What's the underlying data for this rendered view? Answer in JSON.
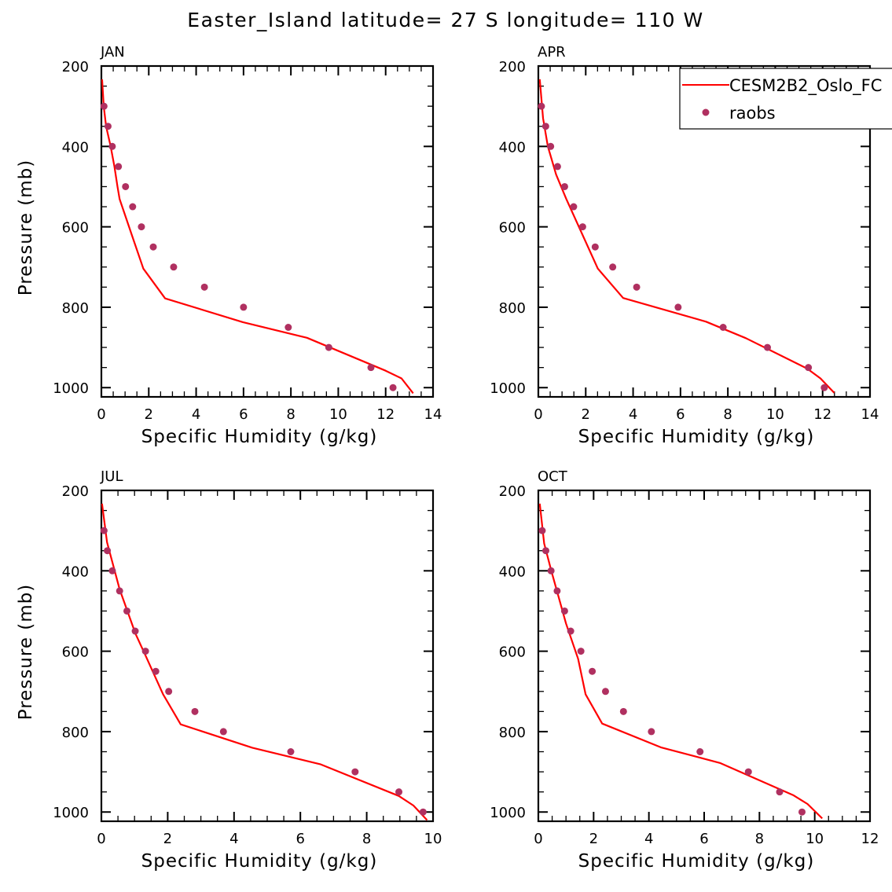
{
  "title": "Easter_Island  latitude= 27 S longitude= 110 W",
  "legend": {
    "model_label": "CESM2B2_Oslo_FC",
    "obs_label": "raobs",
    "placement": "top-right of APR panel"
  },
  "colors": {
    "model": "#ff0000",
    "obs": "#b03060",
    "axes": "#000000"
  },
  "chart_data": [
    {
      "type": "line",
      "title": "JAN",
      "xlabel": "Specific Humidity (g/kg)",
      "ylabel": "Pressure (mb)",
      "xlim": [
        0,
        14
      ],
      "ylim": [
        200,
        1023
      ],
      "y_inverted": true,
      "xticks": [
        0,
        2,
        4,
        6,
        8,
        10,
        12,
        14
      ],
      "yticks": [
        200,
        400,
        600,
        800,
        1000
      ],
      "series": [
        {
          "name": "CESM2B2_Oslo_FC",
          "style": "line",
          "x": [
            0.03,
            0.1,
            0.2,
            0.39,
            0.55,
            0.68,
            0.77,
            1.3,
            1.77,
            2.69,
            5.97,
            8.68,
            12.0,
            12.67,
            13.16
          ],
          "y": [
            233,
            300,
            350,
            400,
            450,
            500,
            531,
            623,
            704,
            778,
            837,
            876,
            958,
            977,
            1014
          ]
        },
        {
          "name": "raobs",
          "style": "markers",
          "x": [
            0.11,
            0.28,
            0.46,
            0.72,
            1.02,
            1.32,
            1.69,
            2.19,
            3.05,
            4.35,
            6.0,
            7.89,
            9.6,
            11.38,
            12.31
          ],
          "y": [
            300,
            350,
            400,
            450,
            500,
            550,
            600,
            650,
            700,
            750,
            800,
            850,
            900,
            950,
            1000
          ]
        }
      ]
    },
    {
      "type": "line",
      "title": "APR",
      "xlabel": "Specific Humidity (g/kg)",
      "ylabel": "",
      "xlim": [
        0,
        14
      ],
      "ylim": [
        200,
        1023
      ],
      "y_inverted": true,
      "xticks": [
        0,
        2,
        4,
        6,
        8,
        10,
        12,
        14
      ],
      "yticks": [
        200,
        400,
        600,
        800,
        1000
      ],
      "series": [
        {
          "name": "CESM2B2_Oslo_FC",
          "style": "line",
          "x": [
            0.06,
            0.2,
            0.4,
            0.75,
            1.18,
            2.51,
            3.58,
            7.08,
            8.76,
            11.36,
            11.91,
            12.49
          ],
          "y": [
            233,
            330,
            400,
            470,
            531,
            704,
            777,
            836,
            877,
            953,
            977,
            1013
          ]
        },
        {
          "name": "raobs",
          "style": "markers",
          "x": [
            0.13,
            0.31,
            0.52,
            0.81,
            1.11,
            1.49,
            1.87,
            2.4,
            3.14,
            4.15,
            5.9,
            7.8,
            9.67,
            11.4,
            12.07
          ],
          "y": [
            300,
            350,
            400,
            450,
            500,
            550,
            600,
            650,
            700,
            750,
            800,
            850,
            900,
            950,
            1000
          ]
        }
      ]
    },
    {
      "type": "line",
      "title": "JUL",
      "xlabel": "Specific Humidity (g/kg)",
      "ylabel": "Pressure (mb)",
      "xlim": [
        0,
        10
      ],
      "ylim": [
        200,
        1023
      ],
      "y_inverted": true,
      "xticks": [
        0,
        2,
        4,
        6,
        8,
        10
      ],
      "yticks": [
        200,
        400,
        600,
        800,
        1000
      ],
      "series": [
        {
          "name": "CESM2B2_Oslo_FC",
          "style": "line",
          "x": [
            0.02,
            0.17,
            0.55,
            1.03,
            1.34,
            1.86,
            2.39,
            4.55,
            6.6,
            8.97,
            9.41,
            9.82
          ],
          "y": [
            233,
            329,
            446,
            557,
            612,
            707,
            782,
            840,
            881,
            960,
            984,
            1020
          ]
        },
        {
          "name": "raobs",
          "style": "markers",
          "x": [
            0.08,
            0.18,
            0.33,
            0.55,
            0.77,
            1.02,
            1.33,
            1.64,
            2.03,
            2.82,
            3.68,
            5.71,
            7.65,
            8.97,
            9.7
          ],
          "y": [
            300,
            350,
            400,
            450,
            500,
            550,
            600,
            650,
            700,
            750,
            800,
            850,
            900,
            950,
            1000
          ]
        }
      ]
    },
    {
      "type": "line",
      "title": "OCT",
      "xlabel": "Specific Humidity (g/kg)",
      "ylabel": "",
      "xlim": [
        0,
        12
      ],
      "ylim": [
        200,
        1023
      ],
      "y_inverted": true,
      "xticks": [
        0,
        2,
        4,
        6,
        8,
        10,
        12
      ],
      "yticks": [
        200,
        400,
        600,
        800,
        1000
      ],
      "series": [
        {
          "name": "CESM2B2_Oslo_FC",
          "style": "line",
          "x": [
            0.05,
            0.21,
            0.47,
            1.0,
            1.44,
            1.71,
            2.31,
            4.43,
            6.57,
            9.22,
            9.74,
            10.27
          ],
          "y": [
            233,
            332,
            400,
            531,
            619,
            707,
            780,
            839,
            878,
            958,
            980,
            1016
          ]
        },
        {
          "name": "raobs",
          "style": "markers",
          "x": [
            0.14,
            0.27,
            0.46,
            0.68,
            0.95,
            1.17,
            1.54,
            1.95,
            2.43,
            3.08,
            4.09,
            5.85,
            7.6,
            8.73,
            9.54
          ],
          "y": [
            300,
            350,
            400,
            450,
            500,
            550,
            600,
            650,
            700,
            750,
            800,
            850,
            900,
            950,
            1000
          ]
        }
      ]
    }
  ]
}
